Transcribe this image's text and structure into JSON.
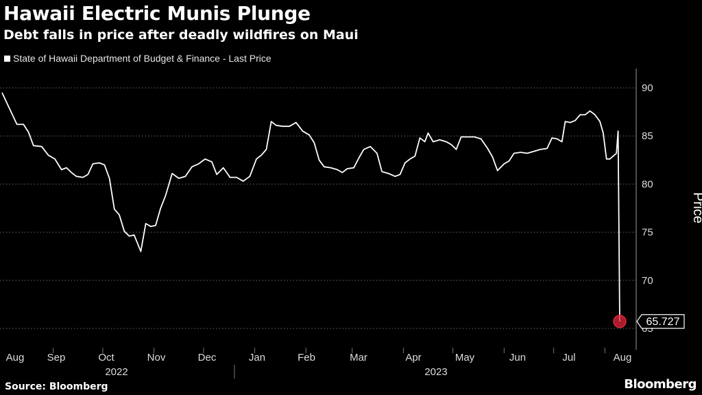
{
  "header": {
    "title": "Hawaii Electric Munis Plunge",
    "subtitle": "Debt falls in price after deadly wildfires on Maui"
  },
  "footer": {
    "source": "Source: Bloomberg",
    "brand": "Bloomberg"
  },
  "colors": {
    "background": "#000000",
    "line": "#ffffff",
    "marker": "#e0263c"
  },
  "chart_data": {
    "type": "line",
    "title": "Hawaii Electric Munis Plunge",
    "subtitle": "Debt falls in price after deadly wildfires on Maui",
    "ylabel": "Price",
    "xlabel": "",
    "ylim": [
      63.5,
      92
    ],
    "yticks": [
      65,
      70,
      75,
      80,
      85,
      90
    ],
    "grid": true,
    "legend_position": "top-left",
    "months": [
      "Aug",
      "Sep",
      "Oct",
      "Nov",
      "Dec",
      "Jan",
      "Feb",
      "Mar",
      "Apr",
      "May",
      "Jun",
      "Jul",
      "Aug"
    ],
    "years": [
      "2022",
      "2023"
    ],
    "last_value_label": "65.727",
    "series": [
      {
        "name": "State of Hawaii Department of Budget & Finance - Last Price",
        "points": [
          [
            "2022-08-01",
            89.5
          ],
          [
            "2022-08-04",
            88.4
          ],
          [
            "2022-08-07",
            87.3
          ],
          [
            "2022-08-10",
            86.2
          ],
          [
            "2022-08-14",
            86.2
          ],
          [
            "2022-08-17",
            85.4
          ],
          [
            "2022-08-20",
            84.0
          ],
          [
            "2022-08-25",
            83.9
          ],
          [
            "2022-08-29",
            83.0
          ],
          [
            "2022-09-02",
            82.6
          ],
          [
            "2022-09-06",
            81.5
          ],
          [
            "2022-09-09",
            81.7
          ],
          [
            "2022-09-12",
            81.2
          ],
          [
            "2022-09-15",
            80.8
          ],
          [
            "2022-09-19",
            80.7
          ],
          [
            "2022-09-22",
            81.0
          ],
          [
            "2022-09-25",
            82.1
          ],
          [
            "2022-09-29",
            82.2
          ],
          [
            "2022-10-02",
            82.0
          ],
          [
            "2022-10-05",
            80.6
          ],
          [
            "2022-10-08",
            77.4
          ],
          [
            "2022-10-11",
            76.8
          ],
          [
            "2022-10-14",
            75.1
          ],
          [
            "2022-10-17",
            74.6
          ],
          [
            "2022-10-20",
            74.7
          ],
          [
            "2022-10-24",
            73.0
          ],
          [
            "2022-10-27",
            75.9
          ],
          [
            "2022-10-30",
            75.6
          ],
          [
            "2022-11-02",
            75.7
          ],
          [
            "2022-11-05",
            77.5
          ],
          [
            "2022-11-08",
            78.8
          ],
          [
            "2022-11-12",
            81.1
          ],
          [
            "2022-11-16",
            80.6
          ],
          [
            "2022-11-20",
            80.8
          ],
          [
            "2022-11-24",
            81.8
          ],
          [
            "2022-11-28",
            82.1
          ],
          [
            "2022-12-02",
            82.6
          ],
          [
            "2022-12-06",
            82.3
          ],
          [
            "2022-12-09",
            81.0
          ],
          [
            "2022-12-13",
            81.7
          ],
          [
            "2022-12-17",
            80.7
          ],
          [
            "2022-12-21",
            80.7
          ],
          [
            "2022-12-25",
            80.3
          ],
          [
            "2022-12-29",
            80.8
          ],
          [
            "2023-01-02",
            82.6
          ],
          [
            "2023-01-05",
            83.0
          ],
          [
            "2023-01-08",
            83.6
          ],
          [
            "2023-01-11",
            86.5
          ],
          [
            "2023-01-14",
            86.1
          ],
          [
            "2023-01-18",
            86.0
          ],
          [
            "2023-01-22",
            86.0
          ],
          [
            "2023-01-26",
            86.4
          ],
          [
            "2023-01-30",
            85.5
          ],
          [
            "2023-02-03",
            85.1
          ],
          [
            "2023-02-06",
            84.3
          ],
          [
            "2023-02-09",
            82.5
          ],
          [
            "2023-02-12",
            81.8
          ],
          [
            "2023-02-16",
            81.7
          ],
          [
            "2023-02-20",
            81.5
          ],
          [
            "2023-02-23",
            81.2
          ],
          [
            "2023-02-26",
            81.6
          ],
          [
            "2023-03-02",
            81.7
          ],
          [
            "2023-03-05",
            82.7
          ],
          [
            "2023-03-08",
            83.6
          ],
          [
            "2023-03-12",
            83.9
          ],
          [
            "2023-03-16",
            83.2
          ],
          [
            "2023-03-19",
            81.3
          ],
          [
            "2023-03-23",
            81.1
          ],
          [
            "2023-03-27",
            80.8
          ],
          [
            "2023-03-30",
            81.0
          ],
          [
            "2023-04-02",
            82.2
          ],
          [
            "2023-04-05",
            82.6
          ],
          [
            "2023-04-08",
            82.9
          ],
          [
            "2023-04-11",
            84.8
          ],
          [
            "2023-04-14",
            84.4
          ],
          [
            "2023-04-16",
            85.3
          ],
          [
            "2023-04-19",
            84.4
          ],
          [
            "2023-04-23",
            84.6
          ],
          [
            "2023-04-27",
            84.4
          ],
          [
            "2023-04-30",
            84.1
          ],
          [
            "2023-05-03",
            83.6
          ],
          [
            "2023-05-06",
            84.9
          ],
          [
            "2023-05-10",
            84.9
          ],
          [
            "2023-05-14",
            84.9
          ],
          [
            "2023-05-18",
            84.7
          ],
          [
            "2023-05-22",
            83.7
          ],
          [
            "2023-05-25",
            82.8
          ],
          [
            "2023-05-28",
            81.4
          ],
          [
            "2023-06-01",
            82.1
          ],
          [
            "2023-06-04",
            82.4
          ],
          [
            "2023-06-07",
            83.2
          ],
          [
            "2023-06-11",
            83.3
          ],
          [
            "2023-06-15",
            83.2
          ],
          [
            "2023-06-19",
            83.4
          ],
          [
            "2023-06-23",
            83.6
          ],
          [
            "2023-06-27",
            83.7
          ],
          [
            "2023-06-30",
            84.8
          ],
          [
            "2023-07-03",
            84.7
          ],
          [
            "2023-07-06",
            84.4
          ],
          [
            "2023-07-08",
            86.5
          ],
          [
            "2023-07-11",
            86.4
          ],
          [
            "2023-07-14",
            86.6
          ],
          [
            "2023-07-17",
            87.2
          ],
          [
            "2023-07-20",
            87.2
          ],
          [
            "2023-07-23",
            87.6
          ],
          [
            "2023-07-26",
            87.2
          ],
          [
            "2023-07-29",
            86.5
          ],
          [
            "2023-07-31",
            85.3
          ],
          [
            "2023-08-02",
            82.6
          ],
          [
            "2023-08-04",
            82.6
          ],
          [
            "2023-08-06",
            82.9
          ],
          [
            "2023-08-08",
            83.2
          ],
          [
            "2023-08-09",
            85.5
          ],
          [
            "2023-08-10",
            65.727
          ]
        ]
      }
    ]
  }
}
